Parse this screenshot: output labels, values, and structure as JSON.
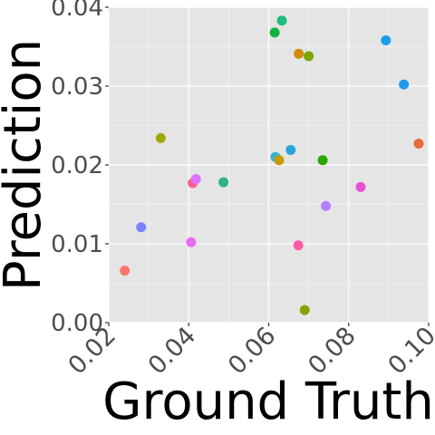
{
  "chart_data": {
    "type": "scatter",
    "title": "",
    "xlabel": "Ground Truth",
    "ylabel": "Prediction",
    "xlim": [
      0.02,
      0.1
    ],
    "ylim": [
      0.0,
      0.04
    ],
    "x_ticks": [
      "0.02",
      "0.04",
      "0.06",
      "0.08",
      "0.10"
    ],
    "y_ticks": [
      "0.00",
      "0.01",
      "0.02",
      "0.03",
      "0.04"
    ],
    "grid": true,
    "legend": "none",
    "colors": {
      "panel_bg": "#e5e5e5",
      "grid": "#ffffff",
      "tick_text": "#4d4d4d",
      "title_text": "#000000"
    },
    "points": [
      {
        "x": 0.024,
        "y": 0.0066,
        "color": "#f8766d"
      },
      {
        "x": 0.0281,
        "y": 0.0121,
        "color": "#7b84ff"
      },
      {
        "x": 0.033,
        "y": 0.0234,
        "color": "#a3a500"
      },
      {
        "x": 0.041,
        "y": 0.0177,
        "color": "#f8608a"
      },
      {
        "x": 0.0406,
        "y": 0.0102,
        "color": "#e76bf3"
      },
      {
        "x": 0.0418,
        "y": 0.0182,
        "color": "#d874fd"
      },
      {
        "x": 0.0487,
        "y": 0.0178,
        "color": "#2ab38c"
      },
      {
        "x": 0.0615,
        "y": 0.0368,
        "color": "#10b443"
      },
      {
        "x": 0.0617,
        "y": 0.021,
        "color": "#36b5d0"
      },
      {
        "x": 0.0626,
        "y": 0.0206,
        "color": "#c49a00"
      },
      {
        "x": 0.0633,
        "y": 0.0383,
        "color": "#1cbd80"
      },
      {
        "x": 0.0655,
        "y": 0.0219,
        "color": "#2aa5dc"
      },
      {
        "x": 0.0675,
        "y": 0.0341,
        "color": "#d08c0a"
      },
      {
        "x": 0.0674,
        "y": 0.0098,
        "color": "#fa5aa8"
      },
      {
        "x": 0.069,
        "y": 0.0016,
        "color": "#8a9f00"
      },
      {
        "x": 0.07,
        "y": 0.0338,
        "color": "#7ca500"
      },
      {
        "x": 0.0735,
        "y": 0.0206,
        "color": "#2ba500"
      },
      {
        "x": 0.0743,
        "y": 0.0148,
        "color": "#b57eff"
      },
      {
        "x": 0.083,
        "y": 0.0172,
        "color": "#ea4fcf"
      },
      {
        "x": 0.0893,
        "y": 0.0358,
        "color": "#179fe8"
      },
      {
        "x": 0.0938,
        "y": 0.0302,
        "color": "#1f9aef"
      },
      {
        "x": 0.0975,
        "y": 0.0227,
        "color": "#e7693a"
      }
    ]
  }
}
